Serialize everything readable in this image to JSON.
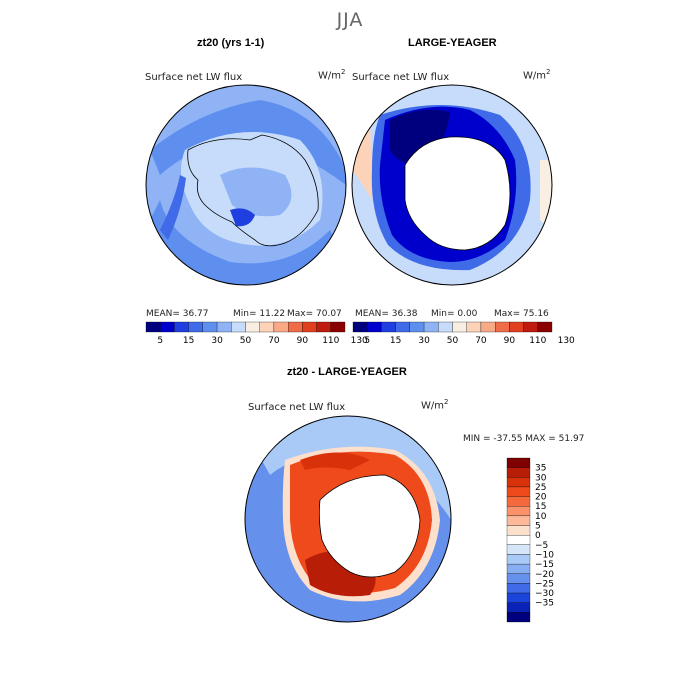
{
  "season": "JJA",
  "variable": "Surface net LW flux",
  "unit_base": "W/m",
  "unit_exp": "2",
  "colors": {
    "abs_scale": [
      "#00007f",
      "#0000cd",
      "#1f3fe0",
      "#3f6ae8",
      "#5f8fee",
      "#8fb3f4",
      "#c6dcfa",
      "#f8eee2",
      "#fcd2b8",
      "#f8aa86",
      "#f06c48",
      "#e0401f",
      "#c01b0f",
      "#8b0000"
    ],
    "diff_scale": [
      "#7f0000",
      "#b81d07",
      "#d9320a",
      "#ef4a1c",
      "#f46a3c",
      "#f9926a",
      "#fcb898",
      "#fde0cc",
      "#ffffff",
      "#d5e6fb",
      "#a9c9f6",
      "#86aef1",
      "#6590ec",
      "#3f6ae8",
      "#1b45da",
      "#0b22b9",
      "#00007f"
    ]
  },
  "chart_data": [
    {
      "type": "map",
      "title": "zt20 (yrs 1-1)",
      "projection": "south polar stereographic",
      "stats": {
        "mean": "MEAN=  36.77",
        "min": "Min=  11.22",
        "max": "Max=  70.07"
      },
      "colorbar_ticks": [
        "5",
        "15",
        "30",
        "50",
        "70",
        "90",
        "110",
        "130"
      ],
      "levels": [
        0,
        5,
        10,
        15,
        20,
        30,
        40,
        50,
        60,
        70,
        80,
        90,
        100,
        110,
        120,
        130
      ]
    },
    {
      "type": "map",
      "title": "LARGE-YEAGER",
      "projection": "south polar stereographic",
      "stats": {
        "mean": "MEAN=  36.38",
        "min": "Min=   0.00",
        "max": "Max=  75.16"
      },
      "colorbar_ticks": [
        "5",
        "15",
        "30",
        "50",
        "70",
        "90",
        "110",
        "130"
      ],
      "levels": [
        0,
        5,
        10,
        15,
        20,
        30,
        40,
        50,
        60,
        70,
        80,
        90,
        100,
        110,
        120,
        130
      ]
    },
    {
      "type": "map",
      "title": "zt20 - LARGE-YEAGER",
      "projection": "south polar stereographic",
      "stats": {
        "minmax": "MIN = -37.55 MAX =  51.97"
      },
      "colorbar_ticks": [
        "35",
        "30",
        "25",
        "20",
        "15",
        "10",
        "5",
        "0",
        "−5",
        "−10",
        "−15",
        "−20",
        "−25",
        "−30",
        "−35"
      ],
      "levels": [
        35,
        30,
        25,
        20,
        15,
        10,
        5,
        0,
        -5,
        -10,
        -15,
        -20,
        -25,
        -30,
        -35
      ]
    }
  ]
}
